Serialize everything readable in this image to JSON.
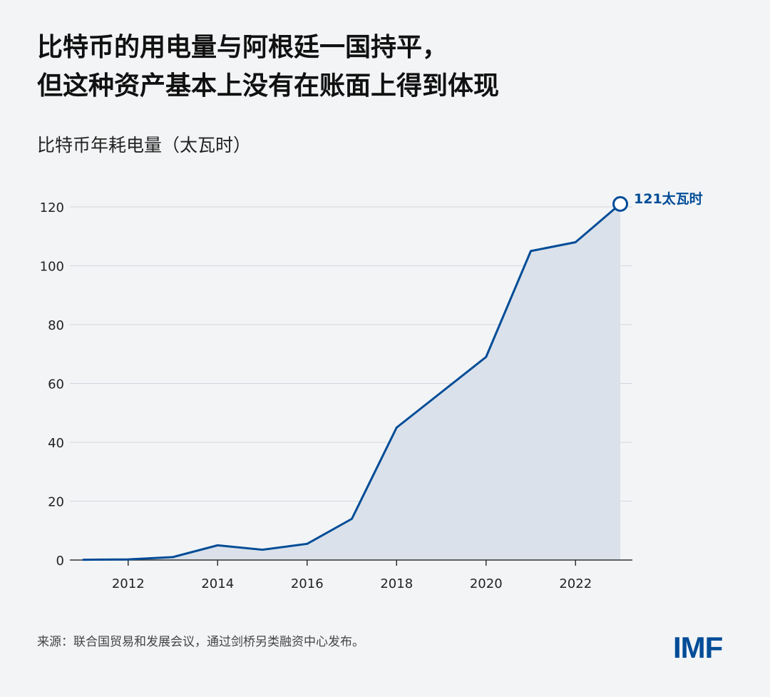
{
  "title_lines": [
    "比特币的用电量与阿根廷一国持平，",
    "但这种资产基本上没有在账面上得到体现"
  ],
  "subtitle": "比特币年耗电量（太瓦时）",
  "source": "来源：联合国贸易和发展会议，通过剑桥另类融资中心发布。",
  "logo": "IMF",
  "colors": {
    "line": "#004c97",
    "area": "#dae1ea",
    "grid": "#d3d7dc",
    "background": "#f2f4f6"
  },
  "chart_data": {
    "type": "area",
    "x": [
      2011,
      2012,
      2013,
      2014,
      2015,
      2016,
      2017,
      2018,
      2019,
      2020,
      2021,
      2022,
      2023
    ],
    "series": [
      {
        "values": [
          0.1,
          0.2,
          1,
          5,
          3.5,
          5.5,
          14,
          45,
          57,
          69,
          105,
          108,
          121
        ]
      }
    ],
    "xticks": [
      "2012",
      "2014",
      "2016",
      "2018",
      "2020",
      "2022"
    ],
    "yticks": [
      "0",
      "20",
      "40",
      "60",
      "80",
      "100",
      "120"
    ],
    "xlim": [
      2011,
      2023
    ],
    "ylim": [
      0,
      120
    ],
    "grid": true,
    "annotation": {
      "x": 2023,
      "y": 121,
      "text": "121太瓦时"
    }
  }
}
